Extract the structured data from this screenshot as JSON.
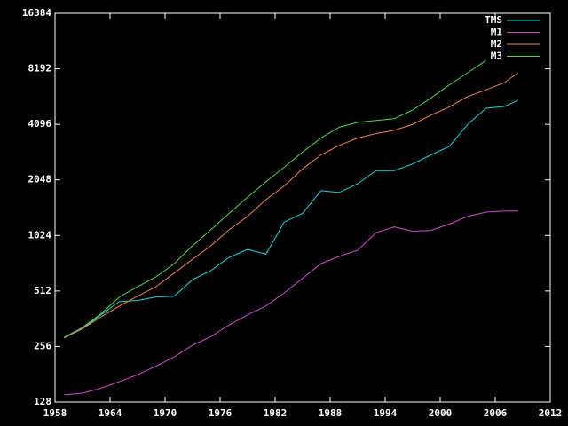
{
  "chart_data": {
    "type": "line",
    "ylog": true,
    "log_base": 2,
    "grid": false,
    "legend": "top-right",
    "x": [
      1959,
      1961,
      1963,
      1965,
      1967,
      1969,
      1971,
      1973,
      1975,
      1977,
      1979,
      1981,
      1983,
      1985,
      1987,
      1989,
      1991,
      1993,
      1995,
      1997,
      1999,
      2001,
      2003,
      2005,
      2007,
      2008.5
    ],
    "series": [
      {
        "name": "TMS",
        "color": "#00e0e0",
        "values": [
          285,
          320,
          380,
          448,
          455,
          475,
          480,
          590,
          660,
          780,
          860,
          810,
          1210,
          1350,
          1790,
          1750,
          1950,
          2300,
          2300,
          2500,
          2800,
          3110,
          4096,
          5010,
          5120,
          5540
        ]
      },
      {
        "name": "M1",
        "color": "#e040e0",
        "values": [
          140,
          143,
          152,
          165,
          180,
          200,
          225,
          260,
          290,
          335,
          380,
          425,
          500,
          600,
          720,
          790,
          850,
          1060,
          1140,
          1080,
          1090,
          1180,
          1300,
          1370,
          1390,
          1390
        ]
      },
      {
        "name": "M2",
        "color": "#ff7f3f",
        "values": [
          285,
          320,
          370,
          424,
          480,
          540,
          640,
          760,
          900,
          1100,
          1300,
          1600,
          1900,
          2350,
          2800,
          3150,
          3450,
          3650,
          3800,
          4100,
          4600,
          5100,
          5800,
          6300,
          6900,
          7800
        ]
      },
      {
        "name": "M3",
        "color": "#40e040",
        "values": [
          287,
          325,
          385,
          474,
          540,
          610,
          720,
          900,
          1100,
          1350,
          1650,
          2000,
          2400,
          2900,
          3450,
          3950,
          4200,
          4300,
          4400,
          4900,
          5700,
          6700,
          7800,
          9100,
          null,
          null
        ]
      }
    ],
    "xlim": [
      1958,
      2012
    ],
    "xticks": [
      1958,
      1964,
      1970,
      1976,
      1982,
      1988,
      1994,
      2000,
      2006,
      2012
    ],
    "ylim": [
      128,
      16384
    ],
    "yticks": [
      128,
      256,
      512,
      1024,
      2048,
      4096,
      8192,
      16384
    ]
  }
}
